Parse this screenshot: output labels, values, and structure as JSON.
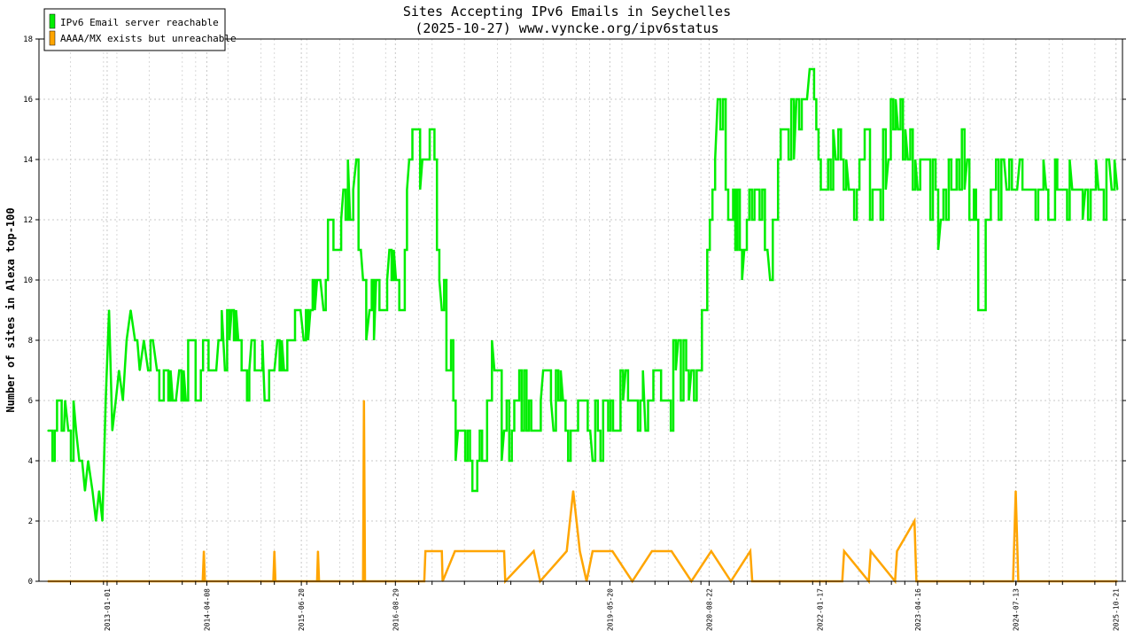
{
  "chart_data": {
    "type": "line",
    "title": "Sites Accepting IPv6 Emails in Seychelles",
    "subtitle": "(2025-10-27) www.vyncke.org/ipv6status",
    "xlabel": "",
    "ylabel": "Number of sites in Alexa top-100",
    "ylim": [
      0,
      18
    ],
    "yticks": [
      0,
      2,
      4,
      6,
      8,
      10,
      12,
      14,
      16,
      18
    ],
    "xlim": [
      "2012-02-20",
      "2025-11-20"
    ],
    "xticks": [
      "2013-01-01",
      "2014-04-08",
      "2015-06-20",
      "2016-08-29",
      "2019-05-20",
      "2020-08-22",
      "2022-01-17",
      "2023-04-16",
      "2024-07-13",
      "2025-10-21"
    ],
    "grid": true,
    "legend_position": "top-left",
    "series": [
      {
        "name": "IPv6 Email server reachable",
        "color": "#00ee00",
        "x": [
          "2012-04-01",
          "2012-06-15",
          "2012-06-20",
          "2012-07-05",
          "2012-08-10",
          "2012-08-25",
          "2012-09-20",
          "2012-10-05",
          "2012-10-25",
          "2012-11-10",
          "2012-11-25",
          "2012-12-10",
          "2012-12-25",
          "2013-01-10",
          "2013-01-25",
          "2013-02-10",
          "2013-02-25",
          "2013-03-15",
          "2013-04-01",
          "2013-04-20",
          "2013-05-10",
          "2013-06-01",
          "2013-06-20",
          "2013-07-10",
          "2013-08-01",
          "2013-08-20",
          "2013-09-10",
          "2013-10-01",
          "2013-11-01",
          "2013-12-01",
          "2014-01-01",
          "2014-02-01",
          "2014-03-01",
          "2014-04-01",
          "2014-05-01",
          "2014-06-01",
          "2014-07-01",
          "2014-08-01",
          "2014-09-01",
          "2014-10-01",
          "2014-11-01",
          "2014-12-01",
          "2015-01-01",
          "2015-02-01",
          "2015-03-01",
          "2015-04-01",
          "2015-05-01",
          "2015-06-01",
          "2015-07-01",
          "2015-08-01",
          "2015-09-01",
          "2015-10-01",
          "2015-11-01",
          "2015-12-01",
          "2016-01-01",
          "2016-02-01",
          "2016-03-01",
          "2016-04-01",
          "2016-05-01",
          "2016-06-01",
          "2016-07-01",
          "2016-08-01",
          "2016-09-01",
          "2016-10-01",
          "2016-11-01",
          "2016-12-01",
          "2017-01-01",
          "2017-02-15",
          "2017-04-01",
          "2017-06-15",
          "2017-09-01",
          "2017-12-01",
          "2018-01-15",
          "2018-03-15",
          "2018-06-01",
          "2018-07-15",
          "2018-09-01",
          "2018-10-15",
          "2018-12-01",
          "2019-01-15",
          "2019-03-01",
          "2019-05-01",
          "2019-06-15",
          "2019-08-01",
          "2019-09-15",
          "2019-11-01",
          "2020-01-01",
          "2020-02-15",
          "2020-04-01",
          "2020-06-01",
          "2020-08-01",
          "2020-10-01",
          "2020-12-01",
          "2021-02-01",
          "2021-04-01",
          "2021-06-01",
          "2021-08-01",
          "2021-10-01",
          "2021-12-01",
          "2022-02-01",
          "2022-04-01",
          "2022-06-01",
          "2022-08-01",
          "2022-10-01",
          "2022-12-01",
          "2023-01-15",
          "2023-03-01",
          "2023-04-16",
          "2023-06-01",
          "2023-08-01",
          "2023-10-01",
          "2023-12-01",
          "2024-02-01",
          "2024-04-01",
          "2024-06-01",
          "2024-08-01",
          "2024-10-01",
          "2024-12-01",
          "2025-02-01",
          "2025-04-01",
          "2025-06-01",
          "2025-08-01",
          "2025-10-01",
          "2025-10-27"
        ],
        "values": [
          5,
          5,
          6,
          5,
          5,
          4,
          3,
          4,
          3,
          2,
          3,
          2,
          6,
          9,
          5,
          6,
          7,
          6,
          8,
          9,
          8,
          7,
          8,
          7,
          8,
          7,
          6,
          7,
          6,
          7,
          6,
          8,
          6,
          8,
          7,
          8,
          7,
          9,
          8,
          7,
          8,
          7,
          6,
          7,
          8,
          7,
          8,
          9,
          8,
          9,
          10,
          9,
          12,
          11,
          13,
          12,
          14,
          10,
          9,
          10,
          9,
          11,
          10,
          9,
          14,
          15,
          14,
          15,
          9,
          5,
          3,
          7,
          5,
          6,
          5,
          7,
          5,
          6,
          5,
          6,
          4,
          6,
          5,
          7,
          6,
          5,
          7,
          6,
          8,
          7,
          9,
          16,
          12,
          11,
          13,
          10,
          15,
          16,
          17,
          13,
          14,
          13,
          14,
          13,
          14,
          15,
          14,
          13,
          14,
          12,
          13,
          14,
          9,
          13,
          13,
          14,
          13,
          13,
          13,
          13,
          13,
          13,
          13,
          13
        ],
        "noise": 0.35
      },
      {
        "name": "AAAA/MX exists but unreachable",
        "color": "#ffa500",
        "x": [
          "2012-04-01",
          "2014-03-20",
          "2014-03-25",
          "2014-03-30",
          "2015-02-10",
          "2015-02-15",
          "2015-02-20",
          "2015-09-01",
          "2015-09-05",
          "2015-09-10",
          "2016-04-01",
          "2016-04-05",
          "2016-04-10",
          "2017-01-10",
          "2017-01-15",
          "2017-04-01",
          "2017-04-05",
          "2017-06-01",
          "2018-01-15",
          "2018-01-20",
          "2018-06-01",
          "2018-07-01",
          "2018-11-01",
          "2018-12-01",
          "2019-01-01",
          "2019-02-01",
          "2019-03-01",
          "2019-06-01",
          "2019-09-01",
          "2019-12-01",
          "2020-03-01",
          "2020-06-01",
          "2020-09-01",
          "2020-12-01",
          "2021-03-01",
          "2021-03-10",
          "2022-05-01",
          "2022-05-10",
          "2022-09-01",
          "2022-09-10",
          "2023-01-01",
          "2023-01-10",
          "2023-04-01",
          "2023-04-10",
          "2024-07-01",
          "2024-07-13",
          "2024-07-25",
          "2024-08-10",
          "2025-10-27"
        ],
        "values": [
          0,
          0,
          1,
          0,
          0,
          1,
          0,
          0,
          1,
          0,
          0,
          6,
          0,
          0,
          1,
          1,
          0,
          1,
          1,
          0,
          1,
          0,
          1,
          3,
          1,
          0,
          1,
          1,
          0,
          1,
          1,
          0,
          1,
          0,
          1,
          0,
          0,
          1,
          0,
          1,
          0,
          1,
          2,
          0,
          0,
          3,
          0,
          0,
          0
        ]
      }
    ]
  }
}
